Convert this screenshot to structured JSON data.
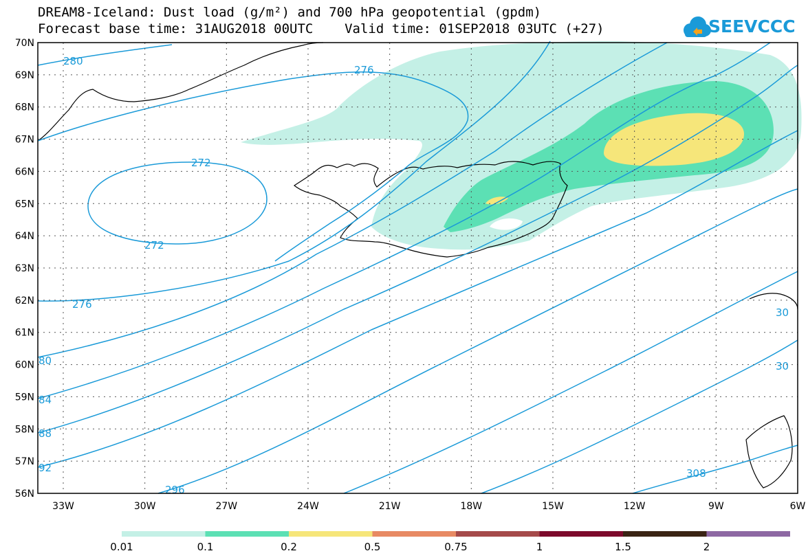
{
  "title": {
    "line1": "DREAM8-Iceland: Dust load (g/m²) and 700 hPa geopotential (gpdm)",
    "line2": "Forecast base time: 31AUG2018 00UTC    Valid time: 01SEP2018 03UTC (+27)"
  },
  "logo": {
    "text": "SEEVCCC",
    "icon": "cloud-logo-icon",
    "color": "#1a9ad8"
  },
  "map": {
    "lat_labels": [
      "70N",
      "69N",
      "68N",
      "67N",
      "66N",
      "65N",
      "64N",
      "63N",
      "62N",
      "61N",
      "60N",
      "59N",
      "58N",
      "57N",
      "56N"
    ],
    "lon_labels": [
      "33W",
      "30W",
      "27W",
      "24W",
      "21W",
      "18W",
      "15W",
      "12W",
      "9W",
      "6W"
    ],
    "contour_color": "#1a9ad8",
    "contour_labels": {
      "c280a": "280",
      "c276a": "276",
      "c272a": "272",
      "c272b": "272",
      "c276b": "276",
      "c280b": "80",
      "c284": "84",
      "c288": "88",
      "c292": "92",
      "c296": "296",
      "c308": "308",
      "c300a": "30",
      "c300b": "30"
    }
  },
  "legend": {
    "colors": [
      "#c4f0e6",
      "#5ce0b4",
      "#f6e67a",
      "#e88a63",
      "#a54a4a",
      "#7d0a2c",
      "#3a2414",
      "#8d68a3"
    ],
    "labels": [
      "0.01",
      "0.1",
      "0.2",
      "0.5",
      "0.75",
      "1",
      "1.5",
      "2"
    ]
  }
}
